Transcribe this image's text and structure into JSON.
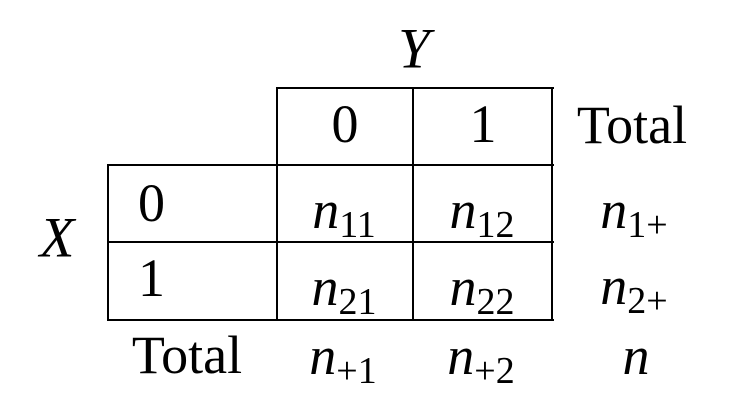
{
  "colors": {
    "ink": "#000000",
    "background": "#ffffff"
  },
  "table": {
    "column_variable": "Y",
    "row_variable": "X",
    "column_headers": [
      "0",
      "1"
    ],
    "column_total_label": "Total",
    "row_headers": [
      "0",
      "1"
    ],
    "row_total_label": "Total",
    "cells": {
      "r1c1": {
        "base": "n",
        "sub": "11"
      },
      "r1c2": {
        "base": "n",
        "sub": "12"
      },
      "r1_total": {
        "base": "n",
        "sub": "1+"
      },
      "r2c1": {
        "base": "n",
        "sub": "21"
      },
      "r2c2": {
        "base": "n",
        "sub": "22"
      },
      "r2_total": {
        "base": "n",
        "sub": "2+"
      },
      "c1_total": {
        "base": "n",
        "sub": "+1"
      },
      "c2_total": {
        "base": "n",
        "sub": "+2"
      },
      "grand_total": {
        "base": "n",
        "sub": ""
      }
    }
  }
}
